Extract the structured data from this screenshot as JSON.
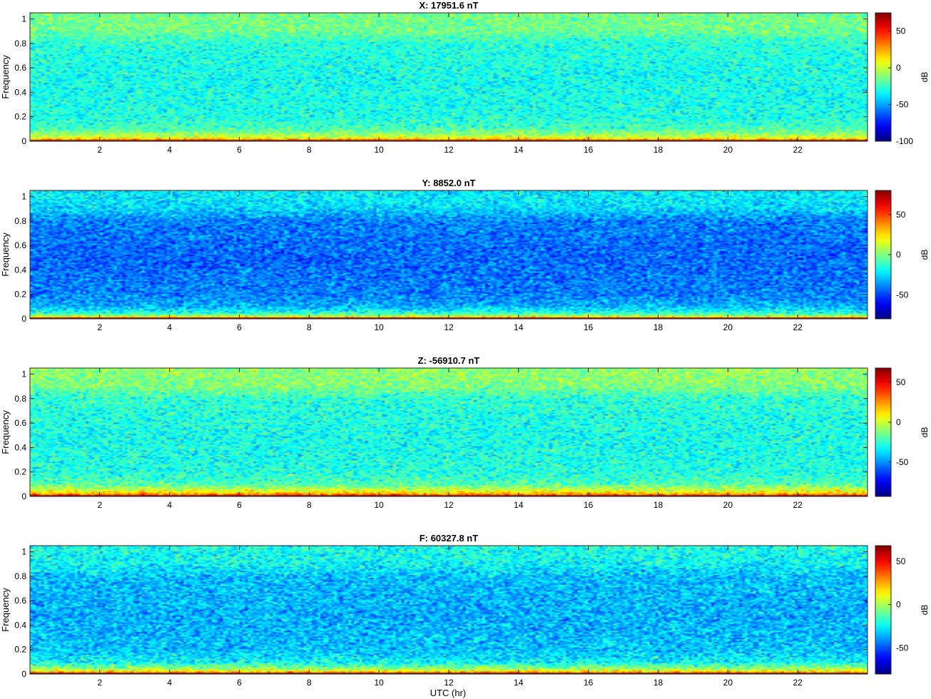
{
  "figure": {
    "xlabel": "UTC (hr)"
  },
  "chart_data": [
    {
      "type": "heatmap",
      "title": "X: 17951.6 nT",
      "ylabel": "Frequency",
      "xlim": [
        0,
        24
      ],
      "ylim": [
        0,
        1.05
      ],
      "xticks": [
        2,
        4,
        6,
        8,
        10,
        12,
        14,
        16,
        18,
        20,
        22
      ],
      "yticks": [
        0,
        0.2,
        0.4,
        0.6,
        0.8,
        1
      ],
      "colorbar": {
        "label": "dB",
        "clim": [
          -100,
          75
        ],
        "ticks": [
          -100,
          -50,
          0,
          50
        ]
      },
      "colormap": "jet",
      "spectral_profile_db": [
        {
          "frequency": 0.0,
          "db": 75
        },
        {
          "frequency": 0.02,
          "db": 10
        },
        {
          "frequency": 0.05,
          "db": -5
        },
        {
          "frequency": 0.1,
          "db": -22
        },
        {
          "frequency": 0.2,
          "db": -30
        },
        {
          "frequency": 0.5,
          "db": -32
        },
        {
          "frequency": 0.8,
          "db": -28
        },
        {
          "frequency": 0.9,
          "db": -15
        },
        {
          "frequency": 1.0,
          "db": -14
        }
      ]
    },
    {
      "type": "heatmap",
      "title": "Y: 8852.0 nT",
      "ylabel": "Frequency",
      "xlim": [
        0,
        24
      ],
      "ylim": [
        0,
        1.05
      ],
      "xticks": [
        2,
        4,
        6,
        8,
        10,
        12,
        14,
        16,
        18,
        20,
        22
      ],
      "yticks": [
        0,
        0.2,
        0.4,
        0.6,
        0.8,
        1
      ],
      "colorbar": {
        "label": "dB",
        "clim": [
          -80,
          80
        ],
        "ticks": [
          -50,
          0,
          50
        ]
      },
      "colormap": "jet",
      "spectral_profile_db": [
        {
          "frequency": 0.0,
          "db": 80
        },
        {
          "frequency": 0.02,
          "db": 8
        },
        {
          "frequency": 0.05,
          "db": -15
        },
        {
          "frequency": 0.1,
          "db": -32
        },
        {
          "frequency": 0.2,
          "db": -40
        },
        {
          "frequency": 0.5,
          "db": -44
        },
        {
          "frequency": 0.8,
          "db": -40
        },
        {
          "frequency": 0.9,
          "db": -26
        },
        {
          "frequency": 1.0,
          "db": -22
        }
      ]
    },
    {
      "type": "heatmap",
      "title": "Z: -56910.7 nT",
      "ylabel": "Frequency",
      "xlim": [
        0,
        24
      ],
      "ylim": [
        0,
        1.05
      ],
      "xticks": [
        2,
        4,
        6,
        8,
        10,
        12,
        14,
        16,
        18,
        20,
        22
      ],
      "yticks": [
        0,
        0.2,
        0.4,
        0.6,
        0.8,
        1
      ],
      "colorbar": {
        "label": "dB",
        "clim": [
          -93,
          68
        ],
        "ticks": [
          -50,
          0,
          50
        ]
      },
      "colormap": "jet",
      "spectral_profile_db": [
        {
          "frequency": 0.0,
          "db": 68
        },
        {
          "frequency": 0.02,
          "db": 20
        },
        {
          "frequency": 0.05,
          "db": 2
        },
        {
          "frequency": 0.1,
          "db": -20
        },
        {
          "frequency": 0.2,
          "db": -28
        },
        {
          "frequency": 0.5,
          "db": -30
        },
        {
          "frequency": 0.8,
          "db": -26
        },
        {
          "frequency": 0.9,
          "db": -12
        },
        {
          "frequency": 1.0,
          "db": -10
        }
      ]
    },
    {
      "type": "heatmap",
      "title": "F: 60327.8 nT",
      "ylabel": "Frequency",
      "xlim": [
        0,
        24
      ],
      "ylim": [
        0,
        1.05
      ],
      "xticks": [
        2,
        4,
        6,
        8,
        10,
        12,
        14,
        16,
        18,
        20,
        22
      ],
      "yticks": [
        0,
        0.2,
        0.4,
        0.6,
        0.8,
        1
      ],
      "colorbar": {
        "label": "dB",
        "clim": [
          -80,
          68
        ],
        "ticks": [
          -50,
          0,
          50
        ]
      },
      "colormap": "jet",
      "spectral_profile_db": [
        {
          "frequency": 0.0,
          "db": 68
        },
        {
          "frequency": 0.02,
          "db": 15
        },
        {
          "frequency": 0.05,
          "db": -5
        },
        {
          "frequency": 0.1,
          "db": -25
        },
        {
          "frequency": 0.2,
          "db": -33
        },
        {
          "frequency": 0.5,
          "db": -36
        },
        {
          "frequency": 0.8,
          "db": -33
        },
        {
          "frequency": 0.9,
          "db": -24
        },
        {
          "frequency": 1.0,
          "db": -22
        }
      ]
    }
  ]
}
